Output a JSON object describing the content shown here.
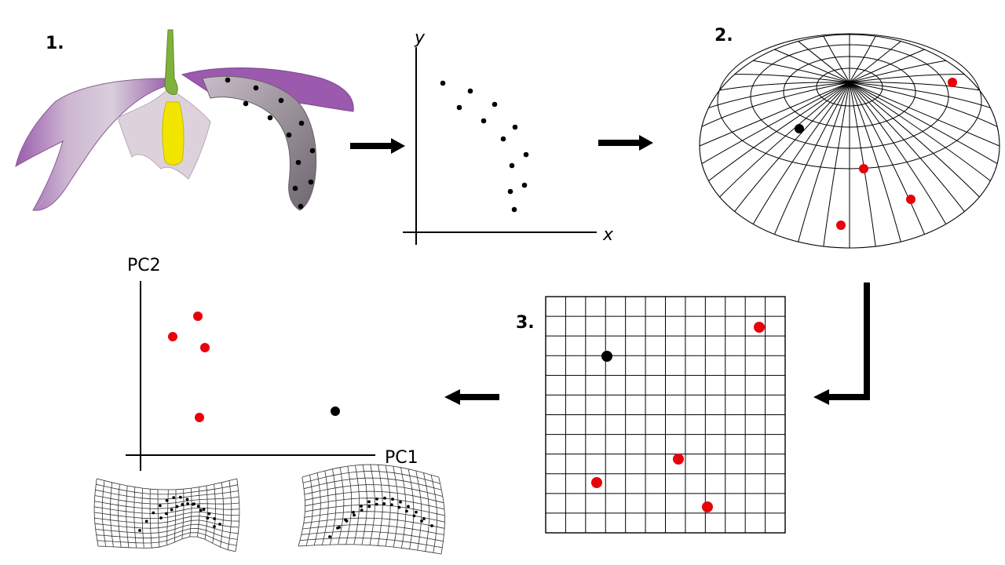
{
  "steps": {
    "one": "1.",
    "two": "2.",
    "three": "3."
  },
  "landmark_plot": {
    "x_label": "x",
    "y_label": "y"
  },
  "pca_plot": {
    "x_label": "PC1",
    "y_label": "PC2"
  },
  "colors": {
    "ink": "#000000",
    "highlight": "#e8000b",
    "petal": "#a872b5",
    "petal_light": "#d8c8d8",
    "anther": "#f2e600",
    "stem": "#7fb23a"
  }
}
